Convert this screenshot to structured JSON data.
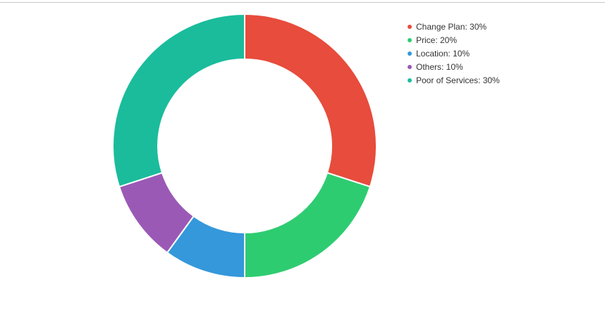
{
  "chart_data": {
    "type": "pie",
    "variant": "donut",
    "categories": [
      "Change Plan",
      "Price",
      "Location",
      "Others",
      "Poor of Services"
    ],
    "values": [
      30,
      20,
      10,
      10,
      30
    ],
    "unit": "%",
    "colors": [
      "#e74c3c",
      "#2ecc71",
      "#3498db",
      "#9b59b6",
      "#1abc9c"
    ],
    "legend_position": "top-right",
    "legend_labels": [
      "Change Plan: 30%",
      "Price: 20%",
      "Location: 10%",
      "Others: 10%",
      "Poor of Services: 30%"
    ]
  }
}
